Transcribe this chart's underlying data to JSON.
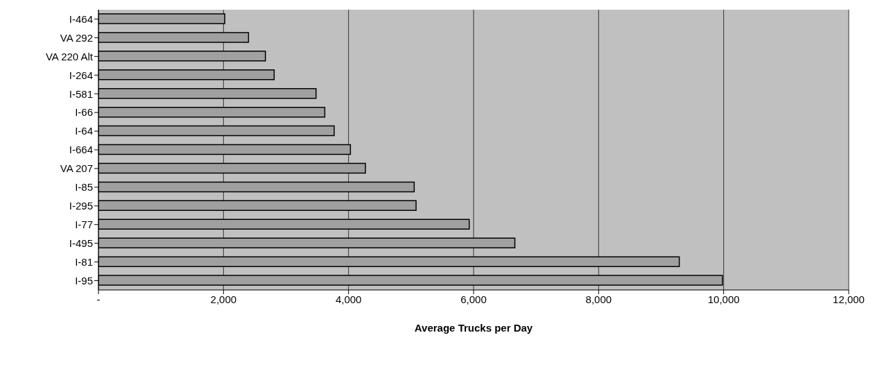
{
  "chart_data": {
    "type": "bar",
    "orientation": "horizontal",
    "xlabel": "Average Trucks per Day",
    "categories": [
      "I-464",
      "VA 292",
      "VA 220 Alt",
      "I-264",
      "I-581",
      "I-66",
      "I-64",
      "I-664",
      "VA 207",
      "I-85",
      "I-295",
      "I-77",
      "I-495",
      "I-81",
      "I-95"
    ],
    "values": [
      2020,
      2400,
      2670,
      2810,
      3480,
      3620,
      3770,
      4030,
      4270,
      5050,
      5080,
      5930,
      6660,
      9290,
      9980
    ],
    "color": "#a0a0a0",
    "xlim": [
      0,
      12000
    ],
    "xticks": [
      {
        "value": 0,
        "label": "-"
      },
      {
        "value": 2000,
        "label": "2,000"
      },
      {
        "value": 4000,
        "label": "4,000"
      },
      {
        "value": 6000,
        "label": "6,000"
      },
      {
        "value": 8000,
        "label": "8,000"
      },
      {
        "value": 10000,
        "label": "10,000"
      },
      {
        "value": 12000,
        "label": "12,000"
      }
    ],
    "grid": "x"
  }
}
